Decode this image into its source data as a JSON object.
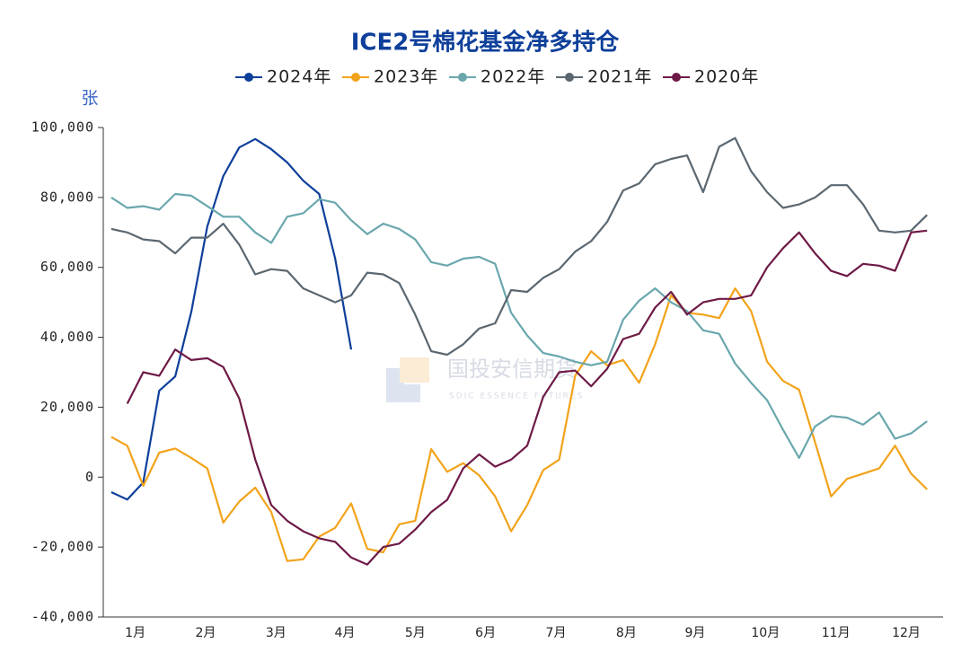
{
  "chart_data": {
    "type": "line",
    "title": "ICE2号棉花基金净多持仓",
    "y_axis_label": "张",
    "watermark": {
      "name": "国投安信期货",
      "subtitle": "SDIC ESSENCE FUTURES"
    },
    "x": [
      0,
      1,
      2,
      3,
      4,
      5,
      6,
      7,
      8,
      9,
      10,
      11,
      12,
      13,
      14,
      15,
      16,
      17,
      18,
      19,
      20,
      21,
      22,
      23,
      24,
      25,
      26,
      27,
      28,
      29,
      30,
      31,
      32,
      33,
      34,
      35,
      36,
      37,
      38,
      39,
      40,
      41,
      42,
      43,
      44,
      45,
      46,
      47,
      48,
      49,
      50,
      51
    ],
    "xlim": [
      -0.5,
      52
    ],
    "xticks": [
      {
        "value": 1.5,
        "label": "1月"
      },
      {
        "value": 5.9,
        "label": "2月"
      },
      {
        "value": 10.3,
        "label": "3月"
      },
      {
        "value": 14.6,
        "label": "4月"
      },
      {
        "value": 19.0,
        "label": "5月"
      },
      {
        "value": 23.4,
        "label": "6月"
      },
      {
        "value": 27.8,
        "label": "7月"
      },
      {
        "value": 32.2,
        "label": "8月"
      },
      {
        "value": 36.5,
        "label": "9月"
      },
      {
        "value": 40.9,
        "label": "10月"
      },
      {
        "value": 45.3,
        "label": "11月"
      },
      {
        "value": 49.7,
        "label": "12月"
      }
    ],
    "ylim": [
      -40000,
      100000
    ],
    "yticks": [
      {
        "value": -40000,
        "label": "-40,000"
      },
      {
        "value": -20000,
        "label": "-20,000"
      },
      0,
      {
        "value": 20000,
        "label": "20,000"
      },
      {
        "value": 40000,
        "label": "40,000"
      },
      {
        "value": 60000,
        "label": "60,000"
      },
      {
        "value": 80000,
        "label": "80,000"
      },
      {
        "value": 100000,
        "label": "100,000"
      }
    ],
    "legend": "top",
    "series": [
      {
        "name": "2024年",
        "color": "#0e3f9a",
        "values": [
          -4300,
          -6400,
          -1500,
          24700,
          28800,
          47300,
          71700,
          86100,
          94300,
          96700,
          93800,
          90000,
          84800,
          81000,
          62500,
          36500,
          null,
          null,
          null,
          null,
          null,
          null,
          null,
          null,
          null,
          null,
          null,
          null,
          null,
          null,
          null,
          null,
          null,
          null,
          null,
          null,
          null,
          null,
          null,
          null,
          null,
          null,
          null,
          null,
          null,
          null,
          null,
          null,
          null,
          null,
          null,
          null
        ]
      },
      {
        "name": "2023年",
        "color": "#f2a31b",
        "values": [
          11500,
          9000,
          -2500,
          7000,
          8200,
          5500,
          2500,
          -13000,
          -7000,
          -3000,
          -10000,
          -24000,
          -23500,
          -17000,
          -14500,
          -7500,
          -20500,
          -21500,
          -13500,
          -12500,
          8000,
          1500,
          4000,
          500,
          -5500,
          -15500,
          -8000,
          2000,
          5000,
          29000,
          36000,
          32000,
          33500,
          27000,
          38000,
          52000,
          47000,
          46500,
          45500,
          54000,
          47500,
          33000,
          27500,
          25000,
          10000,
          -5500,
          -500,
          1000,
          2500,
          9000,
          1000,
          -3500
        ]
      },
      {
        "name": "2022年",
        "color": "#6aa7ad",
        "values": [
          80000,
          77000,
          77500,
          76500,
          81000,
          80500,
          77500,
          74500,
          74500,
          70000,
          67000,
          74500,
          75500,
          79500,
          78500,
          73500,
          69500,
          72500,
          71000,
          68000,
          61500,
          60500,
          62500,
          63000,
          61000,
          47000,
          40500,
          35500,
          34500,
          33000,
          32000,
          33000,
          45000,
          50500,
          54000,
          50000,
          47500,
          42000,
          41000,
          32500,
          27000,
          22000,
          13500,
          5500,
          14500,
          17500,
          17000,
          15000,
          18500,
          11000,
          12500,
          16000
        ]
      },
      {
        "name": "2021年",
        "color": "#5b6770",
        "values": [
          71000,
          70000,
          68000,
          67500,
          64000,
          68500,
          68500,
          72500,
          66500,
          58000,
          59500,
          59000,
          54000,
          52000,
          50000,
          52000,
          58500,
          58000,
          55500,
          46500,
          36000,
          35000,
          38000,
          42500,
          44000,
          53500,
          53000,
          57000,
          59500,
          64500,
          67500,
          73000,
          82000,
          84000,
          89500,
          91000,
          92000,
          81500,
          94500,
          97000,
          87500,
          81500,
          77000,
          78000,
          80000,
          83500,
          83500,
          78000,
          70500,
          70000,
          70500,
          75000
        ]
      },
      {
        "name": "2020年",
        "color": "#6e1a46",
        "values": [
          null,
          21000,
          30000,
          29000,
          36500,
          33500,
          34000,
          31500,
          22500,
          5000,
          -8000,
          -12500,
          -15500,
          -17500,
          -18500,
          -23000,
          -25000,
          -20000,
          -19000,
          -15000,
          -10000,
          -6500,
          2500,
          6500,
          3000,
          5000,
          9000,
          23000,
          30000,
          30500,
          26000,
          31000,
          39500,
          41000,
          48500,
          53000,
          46500,
          50000,
          51000,
          51000,
          52000,
          60000,
          65500,
          70000,
          64000,
          59000,
          57500,
          61000,
          60500,
          59000,
          70000,
          70500
        ]
      }
    ]
  }
}
